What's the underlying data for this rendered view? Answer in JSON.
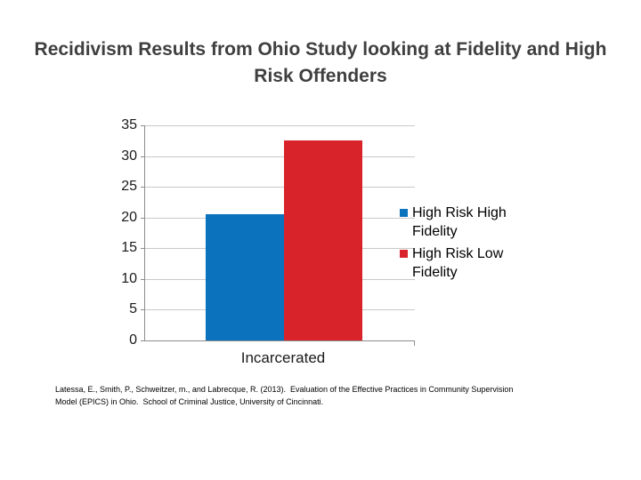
{
  "slide": {
    "title": "Recidivism Results from Ohio Study looking at Fidelity and High Risk Offenders",
    "citation": "Latessa, E., Smith, P., Schweitzer, m., and Labrecque, R. (2013).  Evaluation of the Effective Practices in Community Supervision Model (EPICS) in Ohio.  School of Criminal Justice, University of Cincinnati."
  },
  "chart_data": {
    "type": "bar",
    "title": "",
    "categories": [
      "Incarcerated"
    ],
    "series": [
      {
        "name": "High Risk High Fidelity",
        "values": [
          20.5
        ],
        "color": "#0b72be"
      },
      {
        "name": "High Risk Low Fidelity",
        "values": [
          32.5
        ],
        "color": "#d9232b"
      }
    ],
    "xlabel": "",
    "ylabel": "",
    "ylim": [
      0,
      35
    ],
    "yticks": [
      0,
      5,
      10,
      15,
      20,
      25,
      30,
      35
    ],
    "grid": true,
    "gridline_color": "#c9c9c9",
    "axis_color": "#8c8c8c",
    "legend_position": "right"
  }
}
